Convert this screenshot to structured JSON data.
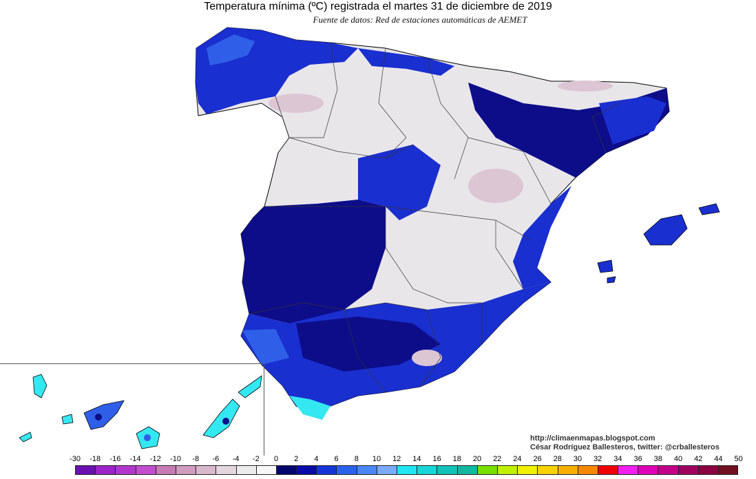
{
  "title": "Temperatura mínima (ºC) registrada el martes 31 de diciembre de 2019",
  "subtitle": "Fuente de datos: Red de estaciones automáticas de AEMET",
  "credits": {
    "url": "http://climaenmapas.blogspot.com",
    "author": "César Rodríguez Ballesteros, twitter: @crballesteros"
  },
  "legend": {
    "labels": [
      "-30",
      "-18",
      "-16",
      "-14",
      "-12",
      "-10",
      "-8",
      "-6",
      "-4",
      "-2",
      "0",
      "2",
      "4",
      "6",
      "8",
      "10",
      "12",
      "14",
      "16",
      "18",
      "20",
      "22",
      "24",
      "26",
      "28",
      "30",
      "32",
      "34",
      "36",
      "38",
      "40",
      "42",
      "44",
      "50"
    ],
    "colors": [
      "#6a0fb0",
      "#9b24c8",
      "#b236cc",
      "#c24ecf",
      "#c87ab4",
      "#d09cc0",
      "#dab8cc",
      "#e4d6de",
      "#ececec",
      "#f6f6f6",
      "#05056e",
      "#0a0aa8",
      "#1535d8",
      "#2a62ec",
      "#4a86f5",
      "#7aaaf8",
      "#22e6f2",
      "#18d6d6",
      "#10c2b8",
      "#10b8a0",
      "#78e000",
      "#c0f000",
      "#f0f000",
      "#f8d200",
      "#f8b000",
      "#f88800",
      "#f00000",
      "#f020f0",
      "#e000b8",
      "#c00088",
      "#a00060",
      "#8a0040",
      "#701020"
    ]
  },
  "colors": {
    "land_mild": "#e9e6ea",
    "land_cold_mauve": "#dcc6d4",
    "below_zero_deep": "#0d0d8a",
    "below_zero_mid": "#1a2fd0",
    "below_zero_light": "#2f5fe8",
    "coast_cyan": "#34e8f2",
    "province_border": "#333333",
    "country_border": "#000000"
  }
}
